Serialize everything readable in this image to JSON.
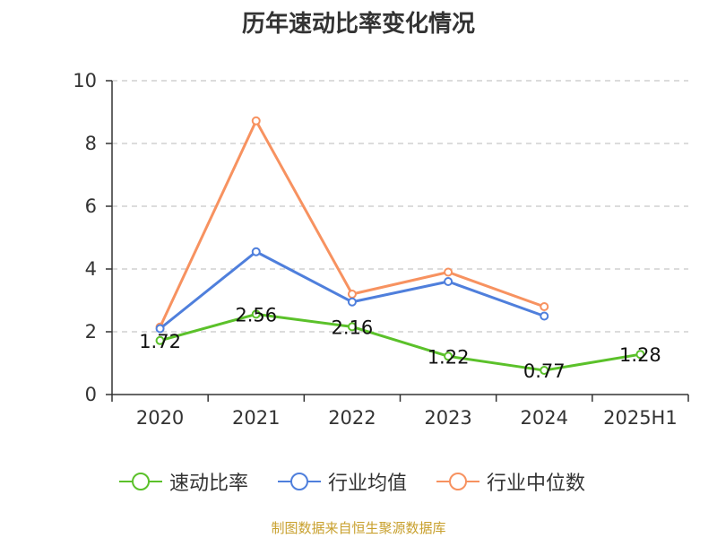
{
  "title": "历年速动比率变化情况",
  "source": "制图数据来自恒生聚源数据库",
  "chart_data": {
    "type": "line",
    "title": "历年速动比率变化情况",
    "categories": [
      "2020",
      "2021",
      "2022",
      "2023",
      "2024",
      "2025H1"
    ],
    "ylim": [
      0,
      10
    ],
    "yticks": [
      0,
      2,
      4,
      6,
      8,
      10
    ],
    "grid": true,
    "legend_position": "bottom",
    "series": [
      {
        "name": "速动比率",
        "color": "#5bc12a",
        "values": [
          1.72,
          2.56,
          2.16,
          1.22,
          0.77,
          1.28
        ],
        "labels": [
          "1.72",
          "2.56",
          "2.16",
          "1.22",
          "0.77",
          "1.28"
        ]
      },
      {
        "name": "行业均值",
        "color": "#4f7fdc",
        "values": [
          2.1,
          4.55,
          2.95,
          3.6,
          2.5,
          null
        ]
      },
      {
        "name": "行业中位数",
        "color": "#f79260",
        "values": [
          2.15,
          8.72,
          3.2,
          3.9,
          2.8,
          null
        ]
      }
    ]
  }
}
